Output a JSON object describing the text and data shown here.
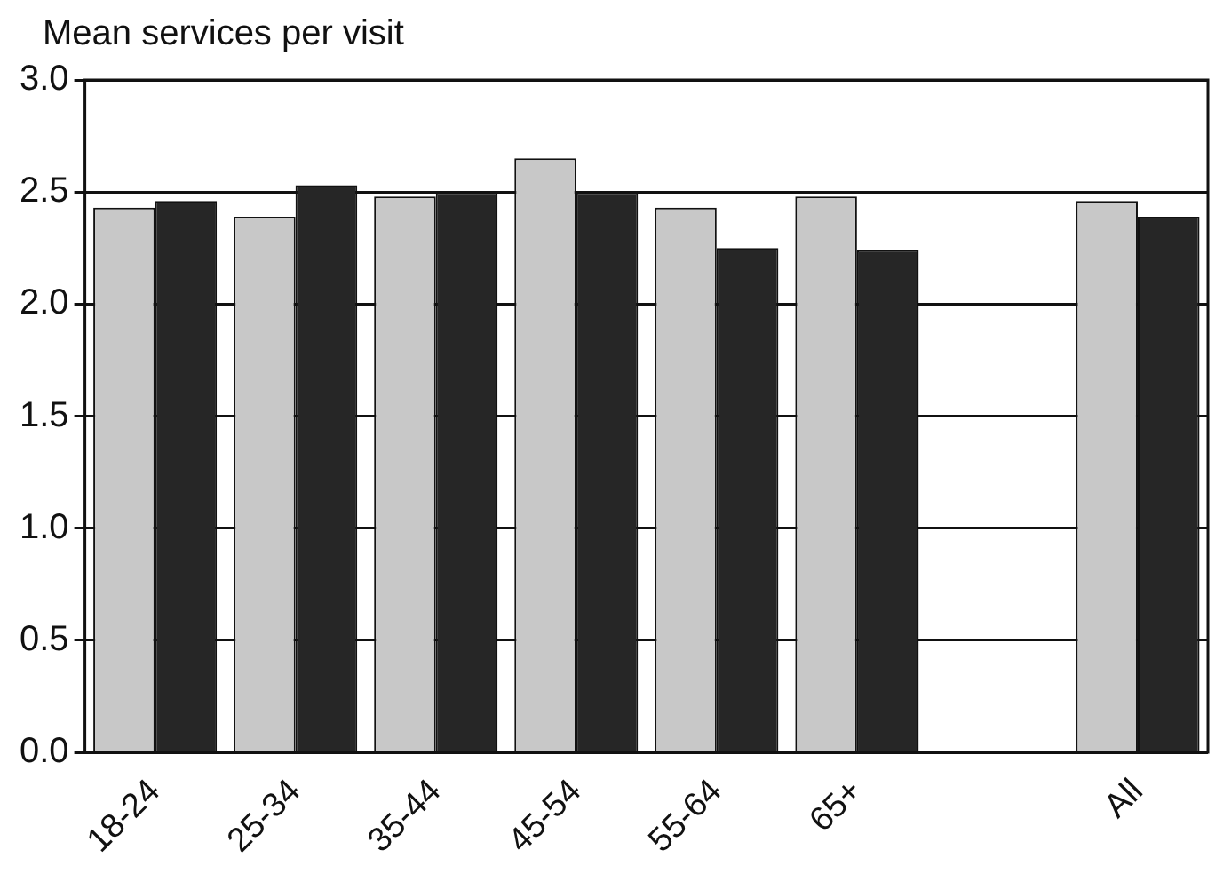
{
  "chart_data": {
    "type": "bar",
    "ylabel": "Mean services per visit",
    "categories": [
      "18-24",
      "25-34",
      "35-44",
      "45-54",
      "55-64",
      "65+",
      null,
      "All"
    ],
    "series": [
      {
        "color": "#c8c8c8",
        "values": [
          2.43,
          2.39,
          2.48,
          2.65,
          2.43,
          2.48,
          null,
          2.46
        ]
      },
      {
        "color": "#262626",
        "values": [
          2.46,
          2.53,
          2.5,
          2.5,
          2.25,
          2.24,
          null,
          2.39
        ]
      }
    ],
    "ylim": [
      0,
      3
    ],
    "yticks": [
      {
        "value": 0,
        "label": "0.0"
      },
      {
        "value": 0.5,
        "label": "0.5"
      },
      {
        "value": 1,
        "label": "1.0"
      },
      {
        "value": 1.5,
        "label": "1.5"
      },
      {
        "value": 2,
        "label": "2.0"
      },
      {
        "value": 2.5,
        "label": "2.5"
      },
      {
        "value": 3,
        "label": "3.0"
      }
    ],
    "grid": "y",
    "legend": false
  }
}
